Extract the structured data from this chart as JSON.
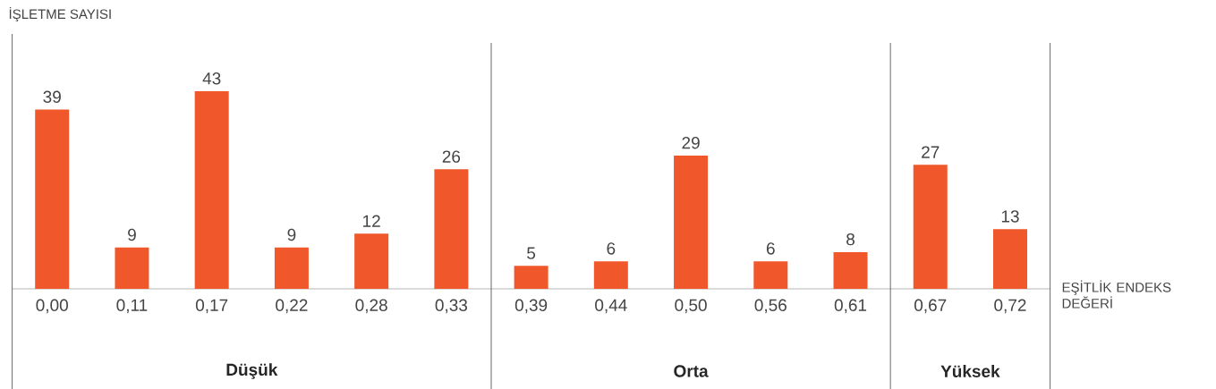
{
  "chart_data": {
    "type": "bar",
    "xlabel": "EŞİTLİK ENDEKS DEĞERİ",
    "categories": [
      "0,00",
      "0,11",
      "0,17",
      "0,22",
      "0,28",
      "0,33",
      "0,39",
      "0,44",
      "0,50",
      "0,56",
      "0,61",
      "0,67",
      "0,72"
    ],
    "values": [
      39,
      9,
      43,
      9,
      12,
      26,
      5,
      6,
      29,
      6,
      8,
      27,
      13
    ],
    "color": "#f0572b",
    "data_labels": true,
    "annotations": [
      "İŞLETME SAYISI",
      "Düşük",
      "Orta",
      "Yüksek"
    ]
  }
}
